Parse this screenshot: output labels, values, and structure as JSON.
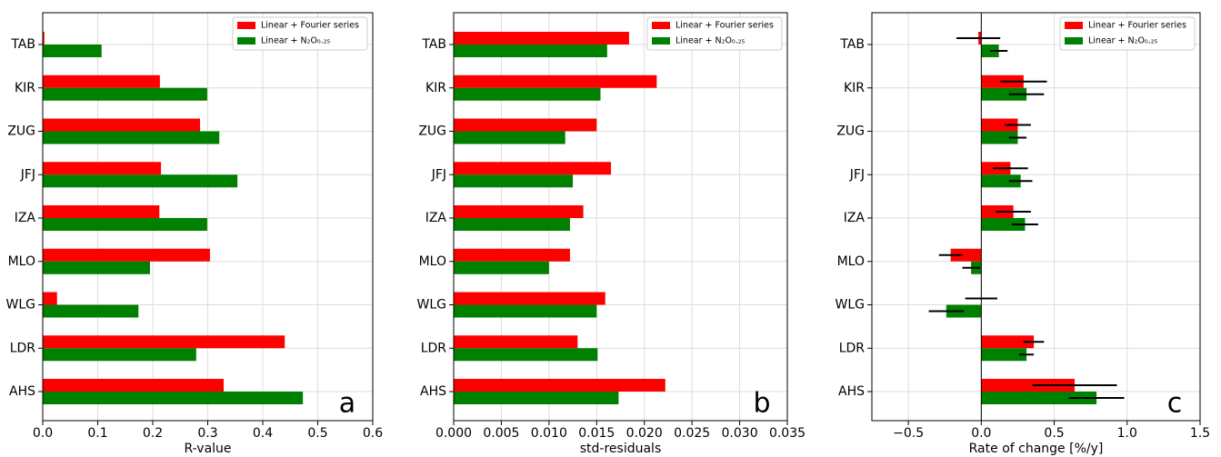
{
  "chart_data": [
    {
      "type": "barh",
      "xlabel": "R-value",
      "annotation": "a",
      "legend": "upper right",
      "grid": true,
      "categories": [
        "TAB",
        "KIR",
        "ZUG",
        "JFJ",
        "IZA",
        "MLO",
        "WLG",
        "LDR",
        "AHS"
      ],
      "series": [
        {
          "name": "Linear + Fourier series",
          "color": "#ff0000",
          "values": [
            0.003,
            0.213,
            0.286,
            0.215,
            0.212,
            0.304,
            0.026,
            0.44,
            0.329
          ]
        },
        {
          "name": "Linear + N₂O₀.₂₅",
          "color": "#008000",
          "values": [
            0.107,
            0.299,
            0.321,
            0.354,
            0.299,
            0.195,
            0.174,
            0.279,
            0.473
          ]
        }
      ],
      "xlim": [
        0,
        0.6
      ],
      "xticks": [
        {
          "value": 0,
          "label": "0.0"
        },
        0.1,
        0.2,
        0.3,
        0.4,
        0.5,
        0.6
      ]
    },
    {
      "type": "barh",
      "xlabel": "std-residuals",
      "annotation": "b",
      "legend": "upper right",
      "grid": true,
      "categories": [
        "TAB",
        "KIR",
        "ZUG",
        "JFJ",
        "IZA",
        "MLO",
        "WLG",
        "LDR",
        "AHS"
      ],
      "series": [
        {
          "name": "Linear + Fourier series",
          "color": "#ff0000",
          "values": [
            0.0184,
            0.0213,
            0.015,
            0.0165,
            0.0136,
            0.0122,
            0.0159,
            0.013,
            0.0222
          ]
        },
        {
          "name": "Linear + N₂O₀.₂₅",
          "color": "#008000",
          "values": [
            0.0161,
            0.0154,
            0.0117,
            0.0125,
            0.0122,
            0.01,
            0.015,
            0.0151,
            0.0173
          ]
        }
      ],
      "xlim": [
        0,
        0.035
      ],
      "xticks": [
        {
          "value": 0,
          "label": "0.000"
        },
        {
          "value": 0.005,
          "label": "0.005"
        },
        {
          "value": 0.01,
          "label": "0.010"
        },
        {
          "value": 0.015,
          "label": "0.015"
        },
        {
          "value": 0.02,
          "label": "0.020"
        },
        {
          "value": 0.025,
          "label": "0.025"
        },
        {
          "value": 0.03,
          "label": "0.030"
        },
        {
          "value": 0.035,
          "label": "0.035"
        }
      ]
    },
    {
      "type": "barh",
      "xlabel": "Rate of change [%/y]",
      "annotation": "c",
      "legend": "upper right",
      "grid": true,
      "categories": [
        "TAB",
        "KIR",
        "ZUG",
        "JFJ",
        "IZA",
        "MLO",
        "WLG",
        "LDR",
        "AHS"
      ],
      "series": [
        {
          "name": "Linear + Fourier series",
          "color": "#ff0000",
          "values": [
            -0.02,
            0.29,
            0.25,
            0.2,
            0.22,
            -0.21,
            0,
            0.36,
            0.64
          ],
          "errors": [
            0.15,
            0.16,
            0.09,
            0.12,
            0.12,
            0.08,
            0.11,
            0.07,
            0.29
          ]
        },
        {
          "name": "Linear + N₂O₀.₂₅",
          "color": "#008000",
          "values": [
            0.12,
            0.31,
            0.25,
            0.27,
            0.3,
            -0.07,
            -0.24,
            0.31,
            0.79
          ],
          "errors": [
            0.06,
            0.12,
            0.06,
            0.08,
            0.09,
            0.06,
            0.12,
            0.05,
            0.19
          ]
        }
      ],
      "xlim": [
        -0.75,
        1.5
      ],
      "xticks": [
        {
          "value": -0.5,
          "label": "−0.5"
        },
        {
          "value": 0,
          "label": "0.0"
        },
        {
          "value": 0.5,
          "label": "0.5"
        },
        {
          "value": 1,
          "label": "1.0"
        },
        {
          "value": 1.5,
          "label": "1.5"
        }
      ]
    }
  ]
}
